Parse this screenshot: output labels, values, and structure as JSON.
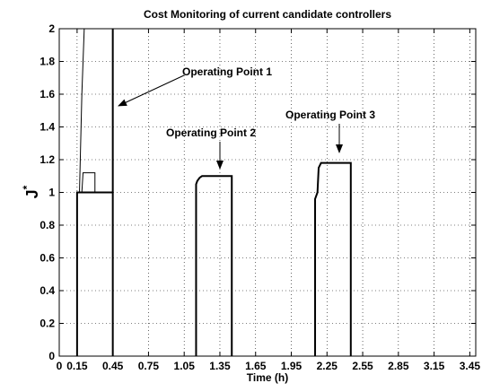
{
  "chart_data": {
    "type": "line",
    "title": "Cost Monitoring of current candidate controllers",
    "xlabel": "Time (h)",
    "ylabel": {
      "base": "J",
      "sup": "*"
    },
    "xlim": [
      0,
      3.5
    ],
    "ylim": [
      0,
      2
    ],
    "xticks": [
      0,
      0.15,
      0.45,
      0.75,
      1.05,
      1.35,
      1.65,
      1.95,
      2.25,
      2.55,
      2.85,
      3.15,
      3.45
    ],
    "yticks": [
      0,
      0.2,
      0.4,
      0.6,
      0.8,
      1,
      1.2,
      1.4,
      1.6,
      1.8,
      2
    ],
    "grid": true,
    "series": [
      {
        "color": "#000000",
        "width": 2,
        "x": [
          0.15,
          0.15,
          0.45,
          0.45,
          0.45
        ],
        "values": [
          0,
          1,
          1,
          0,
          2
        ]
      },
      {
        "color": "#000000",
        "width": 1,
        "x": [
          0.17,
          0.19,
          0.21
        ],
        "values": [
          1,
          1.6,
          2
        ]
      },
      {
        "color": "#000000",
        "width": 1,
        "x": [
          0.19,
          0.2,
          0.3,
          0.3
        ],
        "values": [
          1,
          1.12,
          1.12,
          1
        ]
      },
      {
        "color": "#000000",
        "width": 2,
        "x": [
          1.15,
          1.15,
          1.16,
          1.18,
          1.2,
          1.45,
          1.45
        ],
        "values": [
          0,
          1.05,
          1.07,
          1.09,
          1.1,
          1.1,
          0
        ]
      },
      {
        "color": "#000000",
        "width": 2,
        "x": [
          2.15,
          2.15,
          2.17,
          2.18,
          2.2,
          2.45,
          2.45
        ],
        "values": [
          0,
          0.96,
          1.0,
          1.15,
          1.18,
          1.18,
          0
        ]
      }
    ],
    "annotations": [
      "Operating Point 1",
      "Operating Point 2",
      "Operating Point 3"
    ]
  }
}
